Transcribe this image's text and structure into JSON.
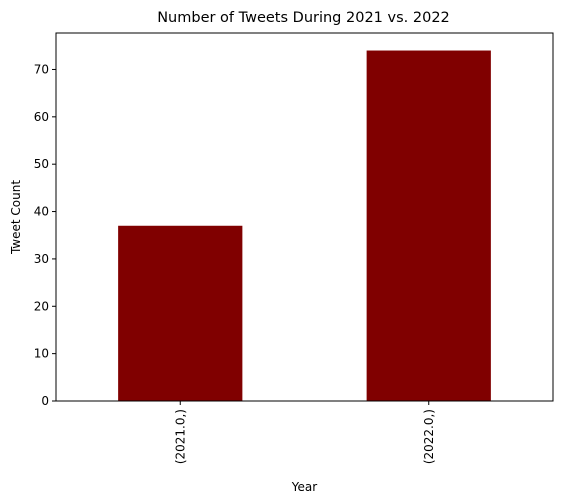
{
  "chart_data": {
    "type": "bar",
    "title": "Number of Tweets During 2021 vs. 2022",
    "xlabel": "Year",
    "ylabel": "Tweet Count",
    "categories": [
      "(2021.0,)",
      "(2022.0,)"
    ],
    "values": [
      37,
      74
    ],
    "ylim": [
      0,
      77.7
    ],
    "yticks": [
      0,
      10,
      20,
      30,
      40,
      50,
      60,
      70
    ],
    "bar_color": "#800000",
    "grid": false,
    "legend": "none"
  }
}
